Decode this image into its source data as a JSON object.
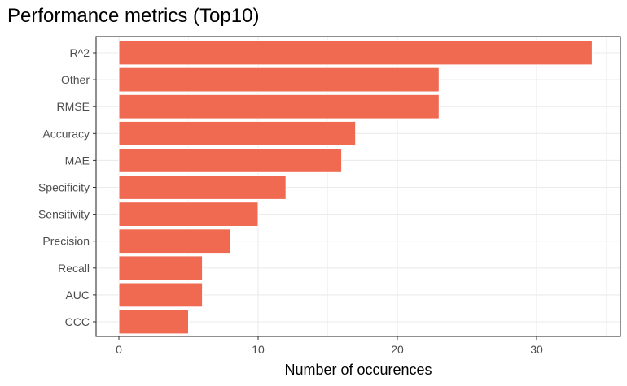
{
  "chart_data": {
    "type": "bar",
    "orientation": "horizontal",
    "title": "Performance metrics (Top10)",
    "xlabel": "Number of occurences",
    "ylabel": "",
    "categories": [
      "R^2",
      "Other",
      "RMSE",
      "Accuracy",
      "MAE",
      "Specificity",
      "Sensitivity",
      "Precision",
      "Recall",
      "AUC",
      "CCC"
    ],
    "values": [
      34,
      23,
      23,
      17,
      16,
      12,
      10,
      8,
      6,
      6,
      5
    ],
    "xlim": [
      0,
      35.7
    ],
    "xticks": [
      0,
      10,
      20,
      30
    ],
    "grid": true,
    "legend": "none",
    "bar_color": "#EF6A50",
    "bar_outline_color": "#ffffff",
    "panel_border_color": "#333333",
    "grid_color": "#ebebeb"
  }
}
